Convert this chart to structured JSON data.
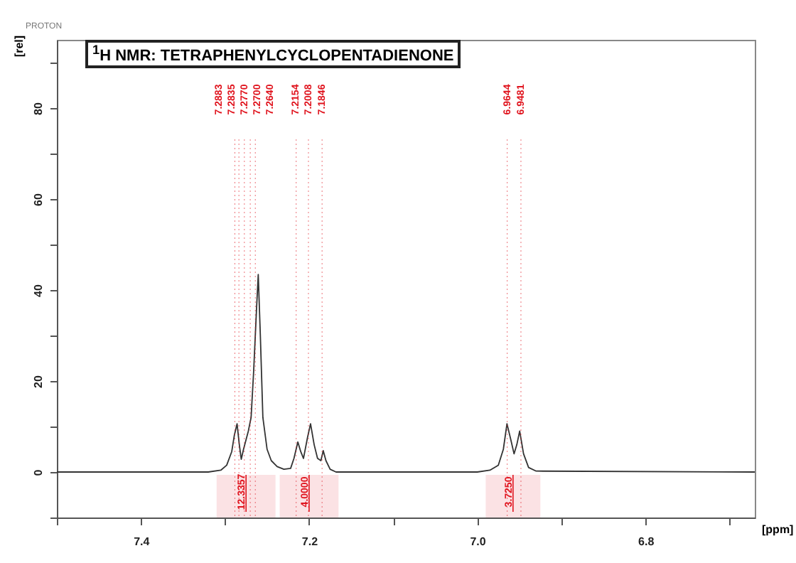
{
  "chart_data": {
    "type": "line",
    "title": "$^{1}$H NMR: TETRAPHENYLCYCLOPENTADIENONE",
    "xlabel": "[ppm]",
    "ylabel": "[rel]",
    "x": [
      7.5,
      7.32,
      7.305,
      7.298,
      7.292,
      7.289,
      7.2857,
      7.283,
      7.2807,
      7.278,
      7.2723,
      7.269,
      7.266,
      7.2625,
      7.2605,
      7.258,
      7.255,
      7.25,
      7.245,
      7.238,
      7.23,
      7.222,
      7.218,
      7.2134,
      7.21,
      7.2067,
      7.202,
      7.1983,
      7.194,
      7.19,
      7.186,
      7.1832,
      7.18,
      7.175,
      7.168,
      7.0,
      6.985,
      6.975,
      6.969,
      6.9647,
      6.96,
      6.9563,
      6.953,
      6.9496,
      6.945,
      6.939,
      6.93,
      6.67
    ],
    "series": [
      {
        "color": "#333333",
        "values": [
          0,
          0,
          0.4,
          1.5,
          4.5,
          8,
          10.6,
          6,
          2.8,
          5,
          9,
          12,
          22,
          36,
          43.4,
          30,
          12,
          5,
          2.5,
          1.2,
          0.6,
          0.8,
          3,
          6.6,
          4.5,
          3,
          7.5,
          10.6,
          6,
          3,
          2.5,
          4.7,
          2.5,
          0.6,
          0,
          0,
          0.4,
          1.5,
          5,
          10.6,
          7,
          4,
          6,
          9,
          4,
          1,
          0.2,
          0
        ]
      }
    ],
    "xlim": [
      7.5,
      6.67
    ],
    "ylim": [
      -10,
      95
    ],
    "xticks": [
      {
        "value": 7.5,
        "label": null
      },
      7.4,
      {
        "value": 7.3,
        "label": null
      },
      7.2,
      {
        "value": 7.1,
        "label": null
      },
      {
        "value": 7,
        "label": "7.0"
      },
      {
        "value": 6.9,
        "label": null
      },
      6.8,
      {
        "value": 6.7,
        "label": null
      }
    ],
    "yticks": [
      {
        "value": -10,
        "label": null
      },
      0,
      {
        "value": 10,
        "label": null
      },
      20,
      {
        "value": 30,
        "label": null
      },
      40,
      {
        "value": 50,
        "label": null
      },
      60,
      {
        "value": 70,
        "label": null
      },
      80,
      {
        "value": 90,
        "label": null
      }
    ],
    "annotations": [
      "PROTON"
    ],
    "ref_lines": [
      {
        "axis": "x",
        "value": 7.2883,
        "label": "7.2883",
        "color": "#e0141e",
        "line_style": "dotted"
      },
      {
        "axis": "x",
        "value": 7.2835,
        "label": "7.2835",
        "color": "#e0141e",
        "line_style": "dotted"
      },
      {
        "axis": "x",
        "value": 7.277,
        "label": "7.2770",
        "color": "#e0141e",
        "line_style": "dotted"
      },
      {
        "axis": "x",
        "value": 7.27,
        "label": "7.2700",
        "color": "#e0141e",
        "line_style": "dotted"
      },
      {
        "axis": "x",
        "value": 7.264,
        "label": "7.2640",
        "color": "#e0141e",
        "line_style": "dotted"
      },
      {
        "axis": "x",
        "value": 7.2154,
        "label": "7.2154",
        "color": "#e0141e",
        "line_style": "dotted"
      },
      {
        "axis": "x",
        "value": 7.2008,
        "label": "7.2008",
        "color": "#e0141e",
        "line_style": "dotted"
      },
      {
        "axis": "x",
        "value": 7.1846,
        "label": "7.1846",
        "color": "#e0141e",
        "line_style": "dotted"
      },
      {
        "axis": "x",
        "value": 6.9644,
        "label": "6.9644",
        "color": "#e0141e",
        "line_style": "dotted"
      },
      {
        "axis": "x",
        "value": 6.9481,
        "label": "6.9481",
        "color": "#e0141e",
        "line_style": "dotted"
      }
    ],
    "bands": [
      {
        "axis": "x",
        "from": 7.31,
        "to": 7.24,
        "label": "12.3357",
        "color": "#e0141e"
      },
      {
        "axis": "x",
        "from": 7.235,
        "to": 7.165,
        "label": "4.0000",
        "color": "#e0141e"
      },
      {
        "axis": "x",
        "from": 6.99,
        "to": 6.925,
        "label": "3.7250",
        "color": "#e0141e"
      }
    ]
  }
}
